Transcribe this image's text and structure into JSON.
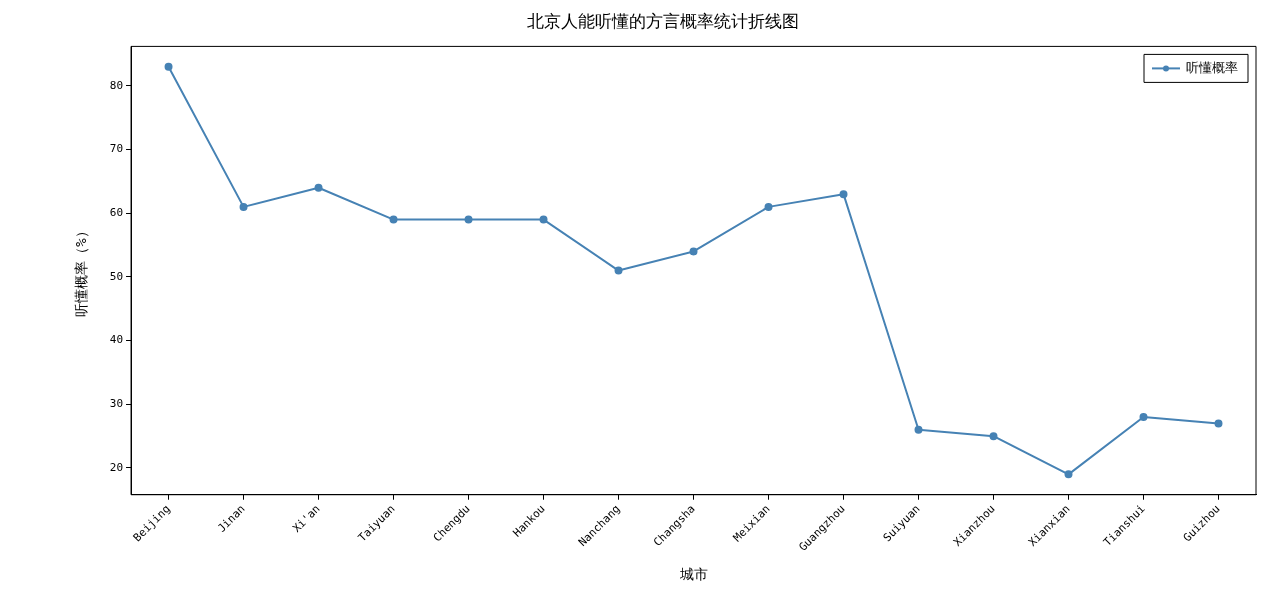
{
  "chart_data": {
    "type": "line",
    "title": "北京人能听懂的方言概率统计折线图",
    "xlabel": "城市",
    "ylabel": "听懂概率（%）",
    "categories": [
      "Beijing",
      "Jinan",
      "Xi'an",
      "Taiyuan",
      "Chengdu",
      "Hankou",
      "Nanchang",
      "Changsha",
      "Meixian",
      "Guangzhou",
      "Suiyuan",
      "Xianzhou",
      "Xianxian",
      "Tianshui",
      "Guizhou"
    ],
    "series": [
      {
        "name": "听懂概率",
        "color": "#4682b4",
        "values": [
          83,
          61,
          64,
          59,
          59,
          59,
          51,
          54,
          61,
          63,
          26,
          25,
          19,
          28,
          27
        ]
      }
    ],
    "ylim": [
      15.8,
      86.2
    ],
    "yticks": [
      20,
      30,
      40,
      50,
      60,
      70,
      80
    ],
    "grid": false,
    "legend": "top right",
    "marker": "circle",
    "line_style": "solid"
  }
}
